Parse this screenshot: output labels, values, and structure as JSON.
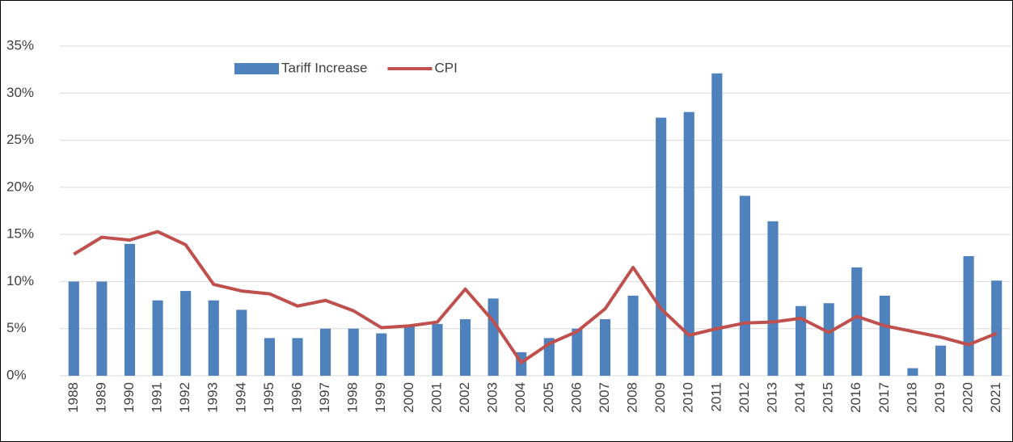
{
  "chart_data": {
    "type": "bar_line",
    "categories": [
      "1988",
      "1989",
      "1990",
      "1991",
      "1992",
      "1993",
      "1994",
      "1995",
      "1996",
      "1997",
      "1998",
      "1999",
      "2000",
      "2001",
      "2002",
      "2003",
      "2004",
      "2005",
      "2006",
      "2007",
      "2008",
      "2009",
      "2010",
      "2011",
      "2012",
      "2013",
      "2014",
      "2015",
      "2016",
      "2017",
      "2018",
      "2019",
      "2020",
      "2021"
    ],
    "series": [
      {
        "name": "Tariff Increase",
        "type": "bar",
        "color": "#4f81bd",
        "values": [
          10,
          10,
          14,
          8,
          9,
          8,
          7,
          4,
          4,
          5,
          5,
          4.5,
          5.3,
          5.5,
          6,
          8.2,
          2.5,
          4,
          5,
          6,
          8.5,
          27.4,
          28,
          32.1,
          19.1,
          16.4,
          7.4,
          7.7,
          11.5,
          8.5,
          0.8,
          3.2,
          12.7,
          10.1
        ]
      },
      {
        "name": "CPI",
        "type": "line",
        "color": "#c0504d",
        "values": [
          12.9,
          14.7,
          14.4,
          15.3,
          13.9,
          9.7,
          9.0,
          8.7,
          7.4,
          8.0,
          6.9,
          5.1,
          5.3,
          5.7,
          9.2,
          5.8,
          1.4,
          3.4,
          4.7,
          7.1,
          11.5,
          7.1,
          4.3,
          5.0,
          5.6,
          5.7,
          6.1,
          4.6,
          6.3,
          5.3,
          4.7,
          4.1,
          3.3,
          4.5
        ]
      }
    ],
    "ylim": [
      0,
      35
    ],
    "yticks": [
      {
        "value": 0,
        "label": "0%"
      },
      {
        "value": 5,
        "label": "5%"
      },
      {
        "value": 10,
        "label": "10%"
      },
      {
        "value": 15,
        "label": "15%"
      },
      {
        "value": 20,
        "label": "20%"
      },
      {
        "value": 25,
        "label": "25%"
      },
      {
        "value": 30,
        "label": "30%"
      },
      {
        "value": 35,
        "label": "35%"
      }
    ],
    "grid": true,
    "legend": "top"
  }
}
